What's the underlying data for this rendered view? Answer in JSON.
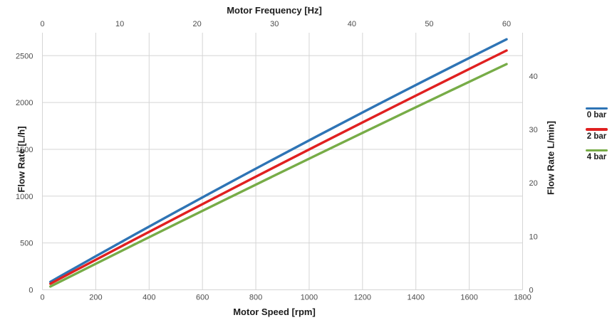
{
  "chart_data": {
    "type": "line",
    "title": "",
    "axes": {
      "x_bottom": {
        "label": "Motor Speed [rpm]",
        "unit": "rpm",
        "range": [
          0,
          1800
        ],
        "ticks": [
          0,
          200,
          400,
          600,
          800,
          1000,
          1200,
          1400,
          1600,
          1800
        ]
      },
      "x_top": {
        "label": "Motor Frequency [Hz]",
        "unit": "Hz",
        "ticks": [
          0,
          10,
          20,
          30,
          40,
          50,
          60
        ],
        "rpm_per_hz": 29
      },
      "y_left": {
        "label": "Flow Rate [L/h]",
        "unit": "L/h",
        "range": [
          0,
          2745
        ],
        "ticks": [
          0,
          500,
          1000,
          1500,
          2000,
          2500
        ]
      },
      "y_right": {
        "label": "Flow Rate L/min]",
        "unit": "L/min",
        "range": [
          0,
          48.1
        ],
        "ticks": [
          0,
          10,
          20,
          30,
          40
        ]
      }
    },
    "series": [
      {
        "name": "0 bar",
        "color": "#2E74B5",
        "points_rpm_lph": [
          [
            30,
            85
          ],
          [
            870,
            1400
          ],
          [
            1740,
            2675
          ]
        ]
      },
      {
        "name": "2 bar",
        "color": "#E02020",
        "points_rpm_lph": [
          [
            30,
            65
          ],
          [
            870,
            1310
          ],
          [
            1740,
            2555
          ]
        ]
      },
      {
        "name": "4 bar",
        "color": "#77AC47",
        "points_rpm_lph": [
          [
            30,
            35
          ],
          [
            870,
            1220
          ],
          [
            1740,
            2410
          ]
        ]
      }
    ],
    "legend": {
      "position": "right",
      "entries": [
        "0 bar",
        "2 bar",
        "4 bar"
      ]
    },
    "grid": {
      "on": true,
      "color": "#D5D5D5",
      "vertical_at_rpm_ticks": true,
      "horizontal_at_lph_ticks": true,
      "top_border": false
    },
    "colors": {
      "background": "#FFFFFF",
      "tick_text": "#4d4d4d",
      "title_text": "#1c1c1c"
    }
  }
}
